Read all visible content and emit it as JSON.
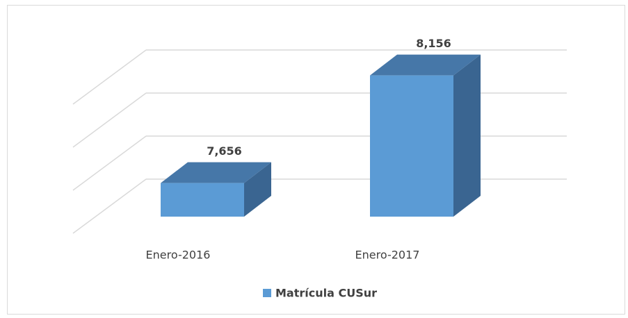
{
  "chart_data": {
    "type": "bar3d",
    "categories": [
      "Enero-2016",
      "Enero-2017"
    ],
    "series": [
      {
        "name": "Matrícula CUSur",
        "color": "#5b9bd5",
        "values": [
          7656,
          8156
        ],
        "value_labels": [
          "7,656",
          "8,156"
        ]
      }
    ],
    "ylim": [
      7500,
      8200
    ],
    "yticks": [
      7500,
      7700,
      7900,
      8100
    ],
    "grid": true,
    "legend": "bottom"
  }
}
